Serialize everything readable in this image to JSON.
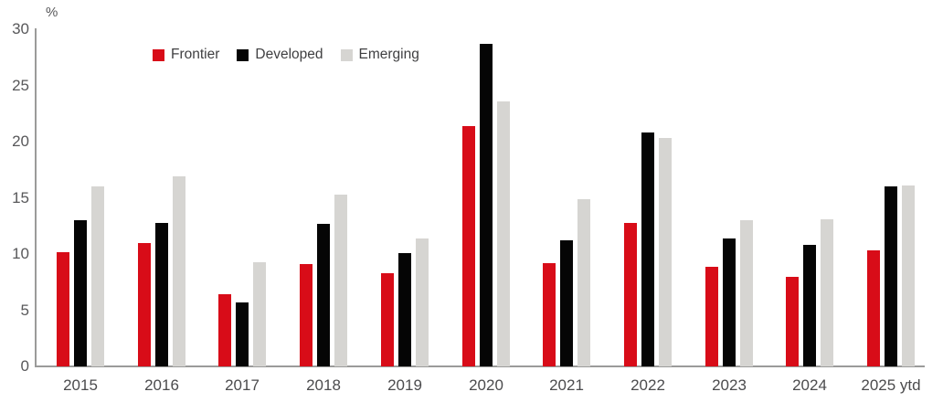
{
  "chart_data": {
    "type": "bar",
    "title": "",
    "unit_label": "%",
    "categories": [
      "2015",
      "2016",
      "2017",
      "2018",
      "2019",
      "2020",
      "2021",
      "2022",
      "2023",
      "2024",
      "2025 ytd"
    ],
    "series": [
      {
        "name": "Frontier",
        "color": "#d80c18",
        "values": [
          10.2,
          11.0,
          6.4,
          9.1,
          8.3,
          21.4,
          9.2,
          12.8,
          8.9,
          8.0,
          10.3
        ]
      },
      {
        "name": "Developed",
        "color": "#050505",
        "values": [
          13.0,
          12.8,
          5.7,
          12.7,
          10.1,
          28.7,
          11.2,
          20.8,
          11.4,
          10.8,
          16.0
        ]
      },
      {
        "name": "Emerging",
        "color": "#d6d5d2",
        "values": [
          16.0,
          16.9,
          9.3,
          15.3,
          11.4,
          23.6,
          14.9,
          20.3,
          13.0,
          13.1,
          16.1
        ]
      }
    ],
    "ylim": [
      0,
      30
    ],
    "yticks": [
      0,
      5,
      10,
      15,
      20,
      25,
      30
    ],
    "grid": false,
    "legend_position": "top-left-inset",
    "axis_colors": {
      "axis_line": "#9b9b9a",
      "y_tick_text": "#58585a",
      "x_label_text": "#4b4b4d"
    }
  }
}
